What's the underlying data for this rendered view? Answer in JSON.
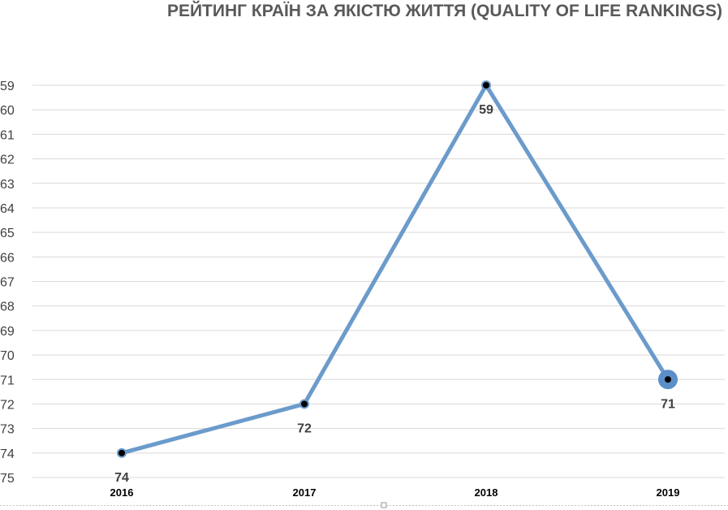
{
  "chart_data": {
    "type": "line",
    "title": "РЕЙТИНГ КРАЇН ЗА ЯКІСТЮ ЖИТТЯ (QUALITY OF LIFE RANKINGS)",
    "xlabel": "",
    "ylabel": "",
    "categories": [
      "2016",
      "2017",
      "2018",
      "2019"
    ],
    "series": [
      {
        "values": [
          74,
          72,
          59,
          71
        ],
        "data_labels": [
          "74",
          "72",
          "59",
          "71"
        ]
      }
    ],
    "y_axis": {
      "reversed": true,
      "min": 59,
      "max": 75,
      "step": 1,
      "ticks": [
        "59",
        "60",
        "61",
        "62",
        "63",
        "64",
        "65",
        "66",
        "67",
        "68",
        "69",
        "70",
        "71",
        "72",
        "73",
        "74",
        "75"
      ]
    },
    "grid": true,
    "legend": "none",
    "colors": {
      "line": "#6b9bcb",
      "marker_fill": "#000000",
      "marker_ring": "#6b9bcb",
      "highlight_marker": "#5b8fc8",
      "gridline": "#d9d9d9",
      "title": "#595959"
    }
  }
}
